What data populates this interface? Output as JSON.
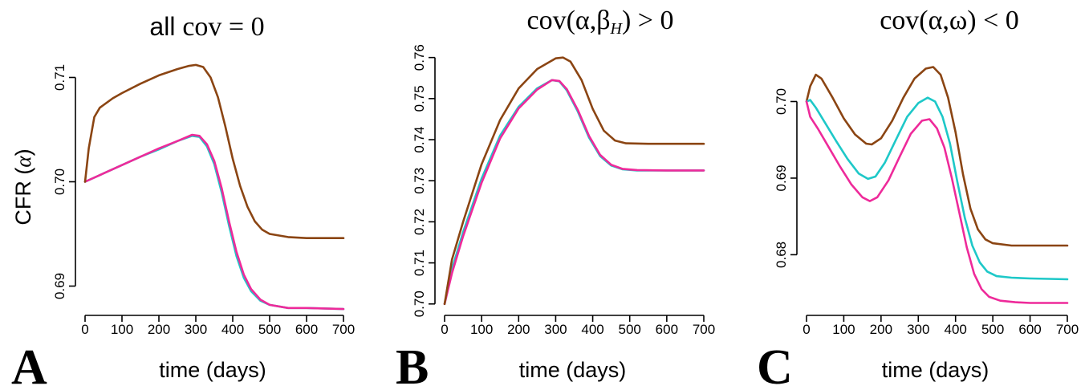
{
  "figure": {
    "ylabel_text": "CFR",
    "ylabel_symbol": "α",
    "colors": {
      "brown": "#8B4513",
      "cyan": "#1EC8C8",
      "magenta": "#EE2A9A"
    }
  },
  "chart_data": [
    {
      "panel": "A",
      "type": "line",
      "title_sans": "all",
      "title_serif": "cov = 0",
      "title_sub": "",
      "title_rest": "",
      "xlabel": "time (days)",
      "ylabel": "CFR (α)",
      "xlim": [
        0,
        700
      ],
      "ylim": [
        0.6875,
        0.7115
      ],
      "xticks": [
        0,
        100,
        200,
        300,
        400,
        500,
        600,
        700
      ],
      "yticks": [
        0.69,
        0.7,
        0.71
      ],
      "ytick_labels": [
        "0.69",
        "0.70",
        "0.71"
      ],
      "grid": false,
      "series": [
        {
          "color": "#1EC8C8",
          "points": [
            [
              0,
              0.7
            ],
            [
              50,
              0.7008
            ],
            [
              100,
              0.7016
            ],
            [
              150,
              0.7024
            ],
            [
              200,
              0.7031
            ],
            [
              250,
              0.7039
            ],
            [
              290,
              0.7044
            ],
            [
              310,
              0.7043
            ],
            [
              330,
              0.7034
            ],
            [
              350,
              0.7017
            ],
            [
              370,
              0.699
            ],
            [
              390,
              0.6958
            ],
            [
              410,
              0.6929
            ],
            [
              430,
              0.6908
            ],
            [
              450,
              0.6895
            ],
            [
              475,
              0.6886
            ],
            [
              500,
              0.6882
            ],
            [
              550,
              0.6879
            ],
            [
              600,
              0.6879
            ],
            [
              700,
              0.6878
            ]
          ]
        },
        {
          "color": "#EE2A9A",
          "points": [
            [
              0,
              0.7
            ],
            [
              50,
              0.7008
            ],
            [
              100,
              0.7016
            ],
            [
              150,
              0.7024
            ],
            [
              200,
              0.7032
            ],
            [
              250,
              0.7039
            ],
            [
              290,
              0.7045
            ],
            [
              310,
              0.7044
            ],
            [
              330,
              0.7036
            ],
            [
              350,
              0.702
            ],
            [
              370,
              0.6994
            ],
            [
              390,
              0.6962
            ],
            [
              410,
              0.6933
            ],
            [
              430,
              0.6911
            ],
            [
              450,
              0.6897
            ],
            [
              475,
              0.6887
            ],
            [
              500,
              0.6882
            ],
            [
              550,
              0.6879
            ],
            [
              600,
              0.6879
            ],
            [
              700,
              0.6878
            ]
          ]
        },
        {
          "color": "#8B4513",
          "points": [
            [
              0,
              0.7
            ],
            [
              10,
              0.7032
            ],
            [
              25,
              0.7062
            ],
            [
              40,
              0.7071
            ],
            [
              75,
              0.708
            ],
            [
              100,
              0.7085
            ],
            [
              150,
              0.7094
            ],
            [
              200,
              0.7102
            ],
            [
              250,
              0.7108
            ],
            [
              280,
              0.7111
            ],
            [
              300,
              0.7112
            ],
            [
              320,
              0.711
            ],
            [
              340,
              0.71
            ],
            [
              360,
              0.7081
            ],
            [
              380,
              0.7053
            ],
            [
              400,
              0.7022
            ],
            [
              420,
              0.6996
            ],
            [
              440,
              0.6976
            ],
            [
              460,
              0.6962
            ],
            [
              480,
              0.6954
            ],
            [
              500,
              0.695
            ],
            [
              550,
              0.6947
            ],
            [
              600,
              0.6946
            ],
            [
              700,
              0.6946
            ]
          ]
        }
      ]
    },
    {
      "panel": "B",
      "type": "line",
      "title_sans": "",
      "title_serif": "cov(α,β",
      "title_sub": "H",
      "title_rest": ") > 0",
      "xlabel": "time (days)",
      "ylabel": "",
      "xlim": [
        0,
        700
      ],
      "ylim": [
        0.698,
        0.7615
      ],
      "xticks": [
        0,
        100,
        200,
        300,
        400,
        500,
        600,
        700
      ],
      "yticks": [
        0.7,
        0.71,
        0.72,
        0.73,
        0.74,
        0.75,
        0.76
      ],
      "ytick_labels": [
        "0.70",
        "0.71",
        "0.72",
        "0.73",
        "0.74",
        "0.75",
        "0.76"
      ],
      "grid": false,
      "series": [
        {
          "color": "#1EC8C8",
          "points": [
            [
              0,
              0.7
            ],
            [
              20,
              0.7085
            ],
            [
              50,
              0.7175
            ],
            [
              100,
              0.7305
            ],
            [
              150,
              0.741
            ],
            [
              200,
              0.748
            ],
            [
              250,
              0.7525
            ],
            [
              290,
              0.7545
            ],
            [
              310,
              0.7542
            ],
            [
              330,
              0.752
            ],
            [
              360,
              0.7468
            ],
            [
              390,
              0.7405
            ],
            [
              420,
              0.736
            ],
            [
              450,
              0.7337
            ],
            [
              480,
              0.7328
            ],
            [
              520,
              0.7325
            ],
            [
              600,
              0.7325
            ],
            [
              700,
              0.7325
            ]
          ]
        },
        {
          "color": "#EE2A9A",
          "points": [
            [
              0,
              0.7
            ],
            [
              20,
              0.7075
            ],
            [
              50,
              0.7165
            ],
            [
              100,
              0.7295
            ],
            [
              150,
              0.7403
            ],
            [
              200,
              0.7476
            ],
            [
              250,
              0.7522
            ],
            [
              290,
              0.7545
            ],
            [
              310,
              0.7543
            ],
            [
              330,
              0.7523
            ],
            [
              360,
              0.7472
            ],
            [
              390,
              0.7409
            ],
            [
              420,
              0.7363
            ],
            [
              450,
              0.7339
            ],
            [
              480,
              0.7329
            ],
            [
              520,
              0.7326
            ],
            [
              600,
              0.7325
            ],
            [
              700,
              0.7325
            ]
          ]
        },
        {
          "color": "#8B4513",
          "points": [
            [
              0,
              0.7
            ],
            [
              20,
              0.7108
            ],
            [
              50,
              0.72
            ],
            [
              100,
              0.734
            ],
            [
              150,
              0.7448
            ],
            [
              200,
              0.7525
            ],
            [
              250,
              0.7572
            ],
            [
              300,
              0.7598
            ],
            [
              320,
              0.76
            ],
            [
              340,
              0.759
            ],
            [
              370,
              0.7545
            ],
            [
              400,
              0.7475
            ],
            [
              430,
              0.7422
            ],
            [
              460,
              0.7398
            ],
            [
              490,
              0.7391
            ],
            [
              550,
              0.739
            ],
            [
              700,
              0.739
            ]
          ]
        }
      ]
    },
    {
      "panel": "C",
      "type": "line",
      "title_sans": "",
      "title_serif": "cov(α,ω) < 0",
      "title_sub": "",
      "title_rest": "",
      "xlabel": "time (days)",
      "ylabel": "",
      "xlim": [
        0,
        700
      ],
      "ylim": [
        0.6725,
        0.7055
      ],
      "xticks": [
        0,
        100,
        200,
        300,
        400,
        500,
        600,
        700
      ],
      "yticks": [
        0.68,
        0.69,
        0.7
      ],
      "ytick_labels": [
        "0.68",
        "0.69",
        "0.70"
      ],
      "grid": false,
      "series": [
        {
          "color": "#8B4513",
          "points": [
            [
              0,
              0.7
            ],
            [
              10,
              0.702
            ],
            [
              25,
              0.7035
            ],
            [
              40,
              0.703
            ],
            [
              70,
              0.7005
            ],
            [
              100,
              0.6978
            ],
            [
              130,
              0.6957
            ],
            [
              160,
              0.6945
            ],
            [
              175,
              0.6944
            ],
            [
              200,
              0.6952
            ],
            [
              230,
              0.6975
            ],
            [
              260,
              0.7005
            ],
            [
              290,
              0.703
            ],
            [
              320,
              0.7043
            ],
            [
              340,
              0.7045
            ],
            [
              360,
              0.7035
            ],
            [
              380,
              0.7005
            ],
            [
              400,
              0.696
            ],
            [
              420,
              0.6905
            ],
            [
              440,
              0.686
            ],
            [
              460,
              0.6833
            ],
            [
              480,
              0.682
            ],
            [
              500,
              0.6815
            ],
            [
              550,
              0.6812
            ],
            [
              600,
              0.6812
            ],
            [
              700,
              0.6812
            ]
          ]
        },
        {
          "color": "#1EC8C8",
          "points": [
            [
              0,
              0.7
            ],
            [
              10,
              0.7002
            ],
            [
              25,
              0.6992
            ],
            [
              50,
              0.6972
            ],
            [
              80,
              0.6948
            ],
            [
              110,
              0.6925
            ],
            [
              140,
              0.6906
            ],
            [
              165,
              0.6899
            ],
            [
              185,
              0.6902
            ],
            [
              210,
              0.692
            ],
            [
              240,
              0.695
            ],
            [
              270,
              0.698
            ],
            [
              300,
              0.6998
            ],
            [
              325,
              0.7005
            ],
            [
              345,
              0.7
            ],
            [
              365,
              0.698
            ],
            [
              385,
              0.6945
            ],
            [
              405,
              0.6895
            ],
            [
              425,
              0.6848
            ],
            [
              445,
              0.6812
            ],
            [
              465,
              0.679
            ],
            [
              485,
              0.6778
            ],
            [
              510,
              0.6772
            ],
            [
              550,
              0.677
            ],
            [
              600,
              0.6769
            ],
            [
              700,
              0.6768
            ]
          ]
        },
        {
          "color": "#EE2A9A",
          "points": [
            [
              0,
              0.7
            ],
            [
              10,
              0.698
            ],
            [
              30,
              0.6965
            ],
            [
              60,
              0.694
            ],
            [
              90,
              0.6915
            ],
            [
              120,
              0.6892
            ],
            [
              150,
              0.6875
            ],
            [
              170,
              0.687
            ],
            [
              190,
              0.6875
            ],
            [
              220,
              0.6897
            ],
            [
              250,
              0.6928
            ],
            [
              280,
              0.6958
            ],
            [
              310,
              0.6975
            ],
            [
              330,
              0.6977
            ],
            [
              350,
              0.6965
            ],
            [
              370,
              0.694
            ],
            [
              390,
              0.69
            ],
            [
              410,
              0.6855
            ],
            [
              430,
              0.681
            ],
            [
              450,
              0.6775
            ],
            [
              470,
              0.6755
            ],
            [
              490,
              0.6745
            ],
            [
              520,
              0.674
            ],
            [
              560,
              0.6738
            ],
            [
              600,
              0.6737
            ],
            [
              700,
              0.6737
            ]
          ]
        }
      ]
    }
  ]
}
